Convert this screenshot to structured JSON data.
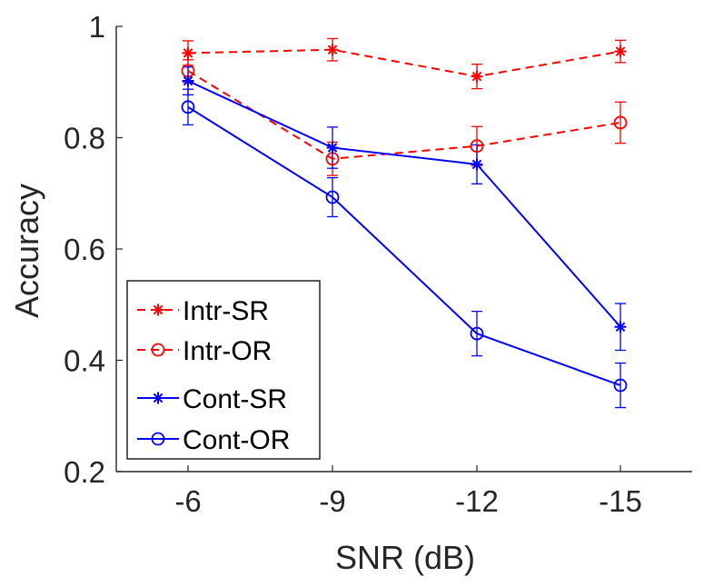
{
  "chart_data": {
    "type": "line",
    "title": "",
    "xlabel": "SNR (dB)",
    "ylabel": "Accuracy",
    "categories": [
      "-6",
      "-9",
      "-12",
      "-15"
    ],
    "y_ticks": [
      "0.2",
      "0.4",
      "0.6",
      "0.8",
      "1"
    ],
    "ylim": [
      0.2,
      1.0
    ],
    "grid": false,
    "legend_position": "bottom-left",
    "series": [
      {
        "name": "Intr-SR",
        "color": "#ff0000",
        "line_style": "dashed",
        "marker": "asterisk",
        "values": [
          0.952,
          0.958,
          0.91,
          0.955
        ],
        "errors": [
          0.022,
          0.02,
          0.022,
          0.02
        ]
      },
      {
        "name": "Intr-OR",
        "color": "#ff0000",
        "line_style": "dashed",
        "marker": "circle",
        "values": [
          0.92,
          0.762,
          0.785,
          0.827
        ],
        "errors": [
          0.02,
          0.03,
          0.035,
          0.037
        ]
      },
      {
        "name": "Cont-SR",
        "color": "#0000ff",
        "line_style": "solid",
        "marker": "asterisk",
        "values": [
          0.902,
          0.782,
          0.752,
          0.46
        ],
        "errors": [
          0.025,
          0.037,
          0.035,
          0.042
        ]
      },
      {
        "name": "Cont-OR",
        "color": "#0000ff",
        "line_style": "solid",
        "marker": "circle",
        "values": [
          0.855,
          0.693,
          0.448,
          0.355
        ],
        "errors": [
          0.032,
          0.035,
          0.04,
          0.04
        ]
      }
    ]
  }
}
